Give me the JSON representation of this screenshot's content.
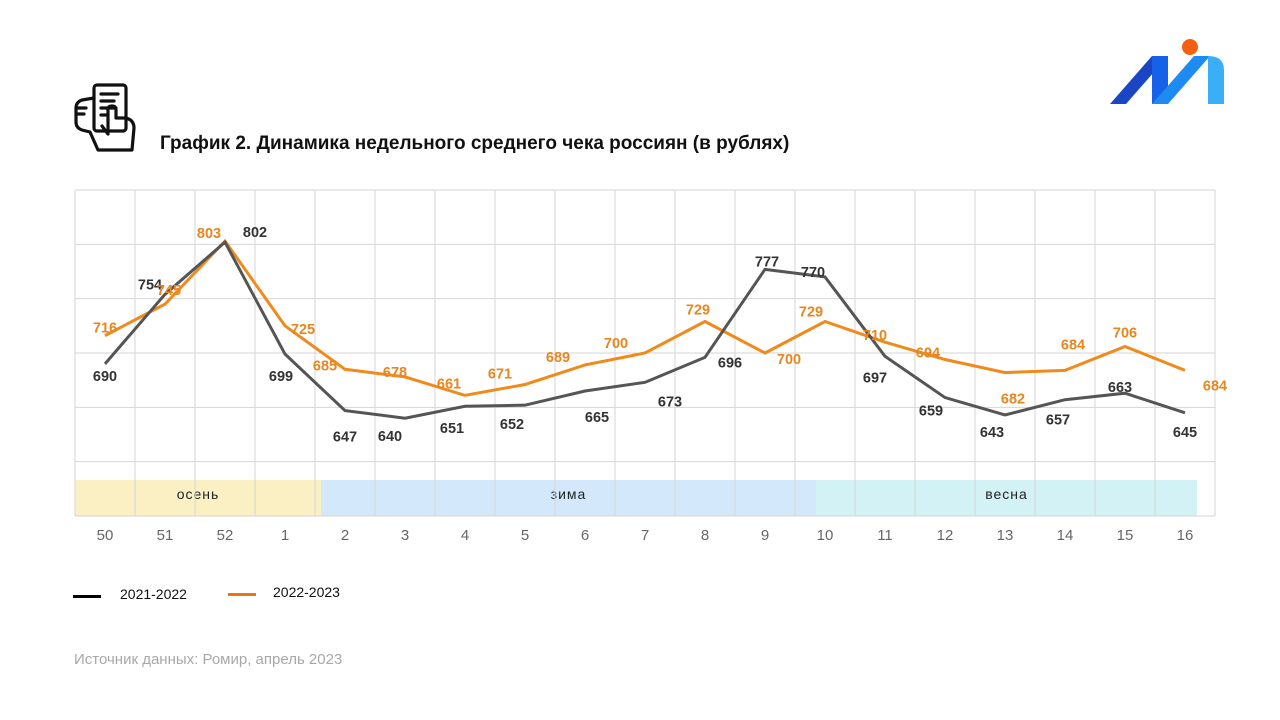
{
  "title": "График 2. Динамика недельного среднего чека россиян (в рублях)",
  "icons": {
    "header_icon": "receipt-hand-icon",
    "logo": "romir-logo"
  },
  "legend": [
    {
      "label": "2021-2022",
      "color": "#000000"
    },
    {
      "label": "2022-2023",
      "color": "#e8731a"
    }
  ],
  "source": "Источник данных: Ромир, апрель 2023",
  "chart_data": {
    "type": "line",
    "title": "График 2. Динамика недельного среднего чека россиян (в рублях)",
    "xlabel": "",
    "ylabel": "",
    "categories": [
      "50",
      "51",
      "52",
      "1",
      "2",
      "3",
      "4",
      "5",
      "6",
      "7",
      "8",
      "9",
      "10",
      "11",
      "12",
      "13",
      "14",
      "15",
      "16"
    ],
    "ylim": [
      550,
      850
    ],
    "ytick_step": 50,
    "y_tick_labels_shown": false,
    "grid": true,
    "legend_position": "bottom-left",
    "series": [
      {
        "name": "2021-2022",
        "color": "#555555",
        "label_color": "#333333",
        "values": [
          690,
          754,
          802,
          699,
          647,
          640,
          651,
          652,
          665,
          673,
          696,
          777,
          770,
          697,
          659,
          643,
          657,
          663,
          645
        ]
      },
      {
        "name": "2022-2023",
        "color": "#f08a1c",
        "label_color": "#e8861e",
        "values": [
          716,
          745,
          803,
          725,
          685,
          678,
          661,
          671,
          689,
          700,
          729,
          700,
          729,
          710,
          694,
          682,
          684,
          706,
          684
        ]
      }
    ],
    "seasons": [
      {
        "label": "осень",
        "from": 0,
        "to": 4.1,
        "color": "#fbf0c3"
      },
      {
        "label": "зима",
        "from": 4.1,
        "to": 12.35,
        "color": "#d3e8fa"
      },
      {
        "label": "весна",
        "from": 12.35,
        "to": 18.7,
        "color": "#d3f2f5"
      }
    ]
  }
}
